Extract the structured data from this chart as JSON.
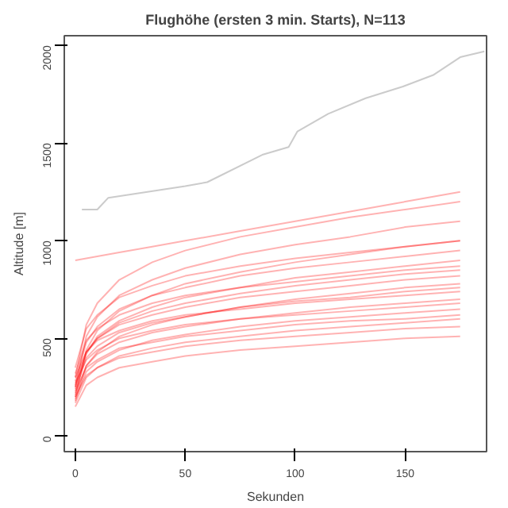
{
  "chart_data": {
    "type": "line",
    "title": "Flughöhe (ersten 3 min. Starts), N=113",
    "xlabel": "Sekunden",
    "ylabel": "Altitude [m]",
    "xlim": [
      -5,
      187
    ],
    "ylim": [
      -80,
      2050
    ],
    "xticks": [
      0,
      50,
      100,
      150
    ],
    "yticks": [
      0,
      500,
      1000,
      1500,
      2000
    ],
    "grid": false,
    "x": [
      0,
      5,
      10,
      20,
      35,
      50,
      75,
      100,
      125,
      150,
      175
    ],
    "series": [
      {
        "color": "#a0a0a0",
        "x": [
          3,
          10,
          15,
          50,
          60,
          85,
          97,
          101,
          115,
          132,
          149,
          163,
          175,
          186
        ],
        "values": [
          1160,
          1160,
          1220,
          1280,
          1300,
          1440,
          1480,
          1560,
          1650,
          1730,
          1790,
          1850,
          1940,
          1970
        ]
      },
      {
        "color": "#ff0000",
        "values": [
          900,
          910,
          920,
          940,
          970,
          1000,
          1050,
          1100,
          1150,
          1200,
          1250
        ]
      },
      {
        "color": "#ff0000",
        "values": [
          150,
          260,
          300,
          350,
          380,
          410,
          440,
          460,
          480,
          500,
          510
        ]
      },
      {
        "color": "#ff0000",
        "values": [
          300,
          570,
          680,
          800,
          890,
          950,
          1020,
          1070,
          1120,
          1160,
          1200
        ]
      },
      {
        "color": "#ff0000",
        "values": [
          250,
          510,
          610,
          720,
          800,
          860,
          930,
          980,
          1020,
          1070,
          1100
        ]
      },
      {
        "color": "#ff0000",
        "values": [
          200,
          440,
          540,
          640,
          720,
          780,
          840,
          890,
          930,
          970,
          1000
        ]
      },
      {
        "color": "#ff0000",
        "values": [
          280,
          480,
          560,
          650,
          720,
          760,
          820,
          860,
          890,
          920,
          950
        ]
      },
      {
        "color": "#ff0000",
        "values": [
          220,
          420,
          510,
          590,
          660,
          710,
          760,
          810,
          840,
          870,
          900
        ]
      },
      {
        "color": "#ff0000",
        "values": [
          320,
          490,
          550,
          620,
          680,
          720,
          760,
          790,
          820,
          850,
          870
        ]
      },
      {
        "color": "#ff0000",
        "values": [
          260,
          430,
          500,
          570,
          620,
          660,
          710,
          740,
          770,
          800,
          820
        ]
      },
      {
        "color": "#ff0000",
        "values": [
          180,
          360,
          430,
          510,
          570,
          610,
          660,
          700,
          730,
          760,
          780
        ]
      },
      {
        "color": "#ff0000",
        "values": [
          240,
          400,
          460,
          530,
          580,
          610,
          660,
          690,
          710,
          740,
          760
        ]
      },
      {
        "color": "#ff0000",
        "values": [
          300,
          430,
          490,
          540,
          590,
          620,
          650,
          680,
          700,
          720,
          740
        ]
      },
      {
        "color": "#ff0000",
        "values": [
          210,
          360,
          420,
          480,
          530,
          560,
          600,
          630,
          660,
          680,
          700
        ]
      },
      {
        "color": "#ff0000",
        "values": [
          270,
          390,
          440,
          500,
          540,
          570,
          600,
          620,
          640,
          660,
          680
        ]
      },
      {
        "color": "#ff0000",
        "values": [
          190,
          330,
          380,
          440,
          490,
          520,
          560,
          590,
          610,
          630,
          650
        ]
      },
      {
        "color": "#ff0000",
        "values": [
          230,
          350,
          390,
          450,
          480,
          510,
          540,
          570,
          590,
          600,
          620
        ]
      },
      {
        "color": "#ff0000",
        "values": [
          170,
          300,
          350,
          410,
          450,
          480,
          510,
          540,
          560,
          580,
          600
        ]
      },
      {
        "color": "#ff0000",
        "values": [
          250,
          430,
          500,
          580,
          640,
          680,
          730,
          770,
          800,
          830,
          850
        ]
      },
      {
        "color": "#ff0000",
        "values": [
          350,
          550,
          620,
          710,
          770,
          820,
          870,
          910,
          940,
          970,
          1000
        ]
      },
      {
        "color": "#ff0000",
        "values": [
          200,
          310,
          350,
          400,
          430,
          460,
          490,
          510,
          530,
          550,
          560
        ]
      }
    ]
  }
}
